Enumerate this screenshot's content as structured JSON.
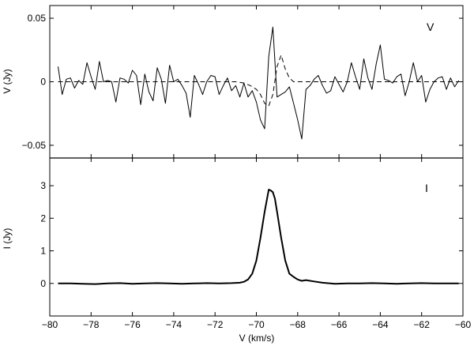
{
  "chart_data": [
    {
      "type": "line",
      "panel": "top",
      "ylabel": "V (Jy)",
      "tag": "V",
      "xlim": [
        -80,
        -60
      ],
      "ylim": [
        -0.06,
        0.06
      ],
      "yticks": [
        -0.05,
        0,
        0.05
      ],
      "ytick_labels": [
        "−0.05",
        "0",
        "0.05"
      ],
      "grid": false,
      "series": [
        {
          "style": "solid",
          "x": [
            -79.6,
            -79.4,
            -79.2,
            -79.0,
            -78.8,
            -78.6,
            -78.4,
            -78.2,
            -78.0,
            -77.8,
            -77.6,
            -77.4,
            -77.2,
            -77.0,
            -76.8,
            -76.6,
            -76.4,
            -76.2,
            -76.0,
            -75.8,
            -75.6,
            -75.4,
            -75.2,
            -75.0,
            -74.8,
            -74.6,
            -74.4,
            -74.2,
            -74.0,
            -73.8,
            -73.6,
            -73.4,
            -73.2,
            -73.0,
            -72.8,
            -72.6,
            -72.4,
            -72.2,
            -72.0,
            -71.8,
            -71.6,
            -71.4,
            -71.2,
            -71.0,
            -70.8,
            -70.6,
            -70.4,
            -70.2,
            -70.0,
            -69.8,
            -69.6,
            -69.4,
            -69.2,
            -69.0,
            -68.8,
            -68.6,
            -68.4,
            -68.2,
            -68.0,
            -67.8,
            -67.6,
            -67.4,
            -67.2,
            -67.0,
            -66.8,
            -66.6,
            -66.4,
            -66.2,
            -66.0,
            -65.8,
            -65.6,
            -65.4,
            -65.2,
            -65.0,
            -64.8,
            -64.6,
            -64.4,
            -64.2,
            -64.0,
            -63.8,
            -63.6,
            -63.4,
            -63.2,
            -63.0,
            -62.8,
            -62.6,
            -62.4,
            -62.2,
            -62.0,
            -61.8,
            -61.6,
            -61.4,
            -61.2,
            -61.0,
            -60.8,
            -60.6,
            -60.4,
            -60.2
          ],
          "y": [
            0.012,
            -0.01,
            0.002,
            0.003,
            -0.005,
            0.001,
            -0.002,
            0.015,
            0.004,
            -0.006,
            0.016,
            0.0,
            0.001,
            0.0,
            -0.016,
            0.003,
            0.002,
            -0.001,
            0.009,
            0.005,
            -0.018,
            0.006,
            -0.008,
            -0.015,
            0.011,
            0.002,
            -0.017,
            0.013,
            0.0,
            0.002,
            -0.003,
            -0.009,
            -0.028,
            0.005,
            -0.002,
            -0.01,
            0.0,
            0.005,
            0.004,
            -0.01,
            -0.003,
            0.003,
            -0.007,
            -0.003,
            -0.012,
            -0.001,
            -0.012,
            -0.007,
            -0.016,
            -0.03,
            -0.037,
            0.02,
            0.043,
            -0.012,
            -0.01,
            -0.008,
            -0.004,
            -0.017,
            -0.03,
            -0.045,
            -0.006,
            -0.003,
            0.002,
            0.005,
            -0.003,
            -0.009,
            -0.007,
            0.004,
            -0.002,
            -0.008,
            0.0,
            0.015,
            0.004,
            -0.006,
            0.018,
            0.003,
            -0.006,
            0.014,
            0.029,
            0.002,
            0.001,
            -0.001,
            0.004,
            0.006,
            -0.011,
            0.0,
            0.015,
            0.0,
            0.005,
            -0.016,
            -0.006,
            0.0,
            0.003,
            0.004,
            -0.006,
            0.003,
            -0.004,
            0.001
          ]
        },
        {
          "style": "dashed",
          "x": [
            -79.6,
            -78.0,
            -77.0,
            -76.0,
            -75.0,
            -74.0,
            -73.0,
            -72.0,
            -71.0,
            -70.6,
            -70.3,
            -70.0,
            -69.8,
            -69.6,
            -69.4,
            -69.2,
            -69.0,
            -68.8,
            -68.6,
            -68.4,
            -68.2,
            -68.0,
            -67.8,
            -67.0,
            -66.0,
            -64.0,
            -62.0,
            -60.2
          ],
          "y": [
            0.0,
            0.0,
            0.0,
            0.0,
            0.0,
            0.0,
            0.0,
            0.0,
            0.0,
            -0.001,
            -0.003,
            -0.006,
            -0.01,
            -0.017,
            -0.019,
            -0.01,
            0.012,
            0.021,
            0.01,
            0.003,
            0.0,
            0.0,
            0.0,
            0.0,
            0.0,
            0.0,
            0.0,
            0.0
          ]
        }
      ]
    },
    {
      "type": "line",
      "panel": "bottom",
      "xlabel": "V (km/s)",
      "ylabel": "I (Jy)",
      "tag": "I",
      "xlim": [
        -80,
        -60
      ],
      "ylim": [
        -1.0,
        3.85
      ],
      "xticks": [
        -80,
        -78,
        -76,
        -74,
        -72,
        -70,
        -68,
        -66,
        -64,
        -62,
        -60
      ],
      "xtick_labels": [
        "−80",
        "−78",
        "−76",
        "−74",
        "−72",
        "−70",
        "−68",
        "−66",
        "−64",
        "−62",
        "−60"
      ],
      "yticks": [
        0,
        1,
        2,
        3
      ],
      "ytick_labels": [
        "0",
        "1",
        "2",
        "3"
      ],
      "grid": false,
      "series": [
        {
          "style": "solid-thick",
          "x": [
            -79.6,
            -79.0,
            -78.4,
            -77.8,
            -77.2,
            -76.6,
            -76.0,
            -75.4,
            -74.8,
            -74.2,
            -73.6,
            -73.0,
            -72.4,
            -71.8,
            -71.2,
            -70.8,
            -70.6,
            -70.4,
            -70.2,
            -70.0,
            -69.8,
            -69.6,
            -69.4,
            -69.3,
            -69.2,
            -69.1,
            -69.0,
            -68.8,
            -68.6,
            -68.4,
            -68.2,
            -68.0,
            -67.8,
            -67.6,
            -67.2,
            -66.8,
            -66.2,
            -65.6,
            -65.0,
            -64.4,
            -63.8,
            -63.2,
            -62.6,
            -62.0,
            -61.4,
            -60.8,
            -60.2
          ],
          "y": [
            0.0,
            0.0,
            -0.01,
            -0.02,
            0.0,
            0.01,
            -0.01,
            0.0,
            0.01,
            0.0,
            -0.01,
            0.0,
            0.01,
            0.0,
            0.01,
            0.02,
            0.05,
            0.12,
            0.3,
            0.7,
            1.4,
            2.2,
            2.88,
            2.85,
            2.8,
            2.6,
            2.2,
            1.4,
            0.7,
            0.3,
            0.2,
            0.12,
            0.08,
            0.1,
            0.06,
            0.02,
            -0.01,
            0.0,
            0.0,
            0.01,
            0.0,
            -0.01,
            0.0,
            0.01,
            0.0,
            0.0,
            0.0
          ]
        }
      ]
    }
  ]
}
